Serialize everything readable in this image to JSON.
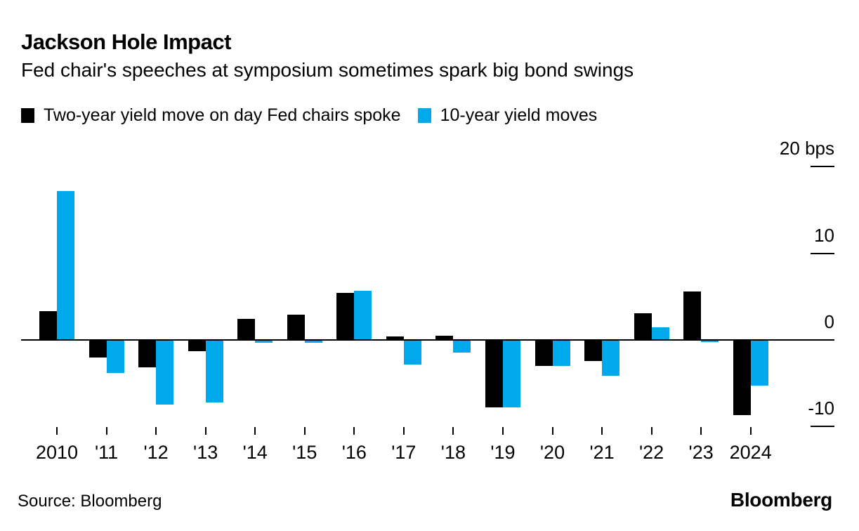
{
  "header": {
    "title": "Jackson Hole Impact",
    "subtitle": "Fed chair's speeches at symposium sometimes spark big bond swings"
  },
  "footer": {
    "source": "Source: Bloomberg",
    "brand": "Bloomberg"
  },
  "chart_data": {
    "type": "bar",
    "title": "Jackson Hole Impact",
    "subtitle": "Fed chair's speeches at symposium sometimes spark big bond swings",
    "unit": "bps",
    "categories": [
      "2010",
      "'11",
      "'12",
      "'13",
      "'14",
      "'15",
      "'16",
      "'17",
      "'18",
      "'19",
      "'20",
      "'21",
      "'22",
      "'23",
      "2024"
    ],
    "series": [
      {
        "name": "Two-year yield move on day Fed chairs spoke",
        "color": "#000000",
        "values": [
          3.3,
          -2.0,
          -3.2,
          -1.3,
          2.4,
          2.9,
          5.4,
          0.4,
          0.5,
          -7.8,
          -3.0,
          -2.4,
          3.1,
          5.6,
          -8.7
        ]
      },
      {
        "name": "10-year yield moves",
        "color": "#00A9EB",
        "values": [
          17.2,
          -3.8,
          -7.5,
          -7.2,
          -0.3,
          -0.3,
          5.7,
          -2.8,
          -1.5,
          -7.8,
          -3.0,
          -4.1,
          1.5,
          -0.2,
          -5.3
        ]
      }
    ],
    "y_ticks": [
      {
        "label": "20 bps",
        "value": 20
      },
      {
        "label": "10",
        "value": 10
      },
      {
        "label": "0",
        "value": 0
      },
      {
        "label": "-10",
        "value": -10
      }
    ],
    "ylim": [
      -12,
      21
    ],
    "grid": false,
    "legend_position": "top"
  }
}
